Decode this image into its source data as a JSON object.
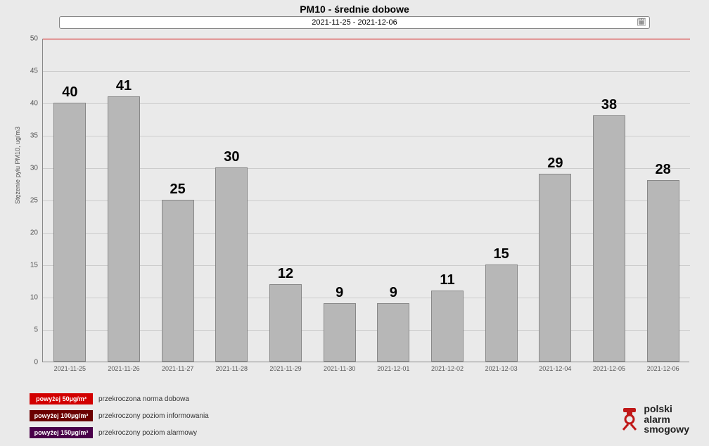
{
  "title": "PM10 - średnie dobowe",
  "date_picker": {
    "text": "2021-11-25  -  2021-12-06"
  },
  "chart": {
    "type": "bar",
    "yaxis_label": "Stężenie pyłu PM10, ug/m3",
    "ylim": [
      0,
      50
    ],
    "ytick_step": 5,
    "yticks": [
      0,
      5,
      10,
      15,
      20,
      25,
      30,
      35,
      40,
      45,
      50
    ],
    "threshold_value": 50,
    "threshold_color": "#d00000",
    "bar_color": "#b7b7b7",
    "bar_border_color": "#888888",
    "grid_color": "#cccccc",
    "background_color": "#eaeaea",
    "bar_width_ratio": 0.6,
    "value_label_fontsize": 20,
    "tick_label_fontsize": 9,
    "categories": [
      "2021-11-25",
      "2021-11-26",
      "2021-11-27",
      "2021-11-28",
      "2021-11-29",
      "2021-11-30",
      "2021-12-01",
      "2021-12-02",
      "2021-12-03",
      "2021-12-04",
      "2021-12-05",
      "2021-12-06"
    ],
    "values": [
      40,
      41,
      25,
      30,
      12,
      9,
      9,
      11,
      15,
      29,
      38,
      28
    ]
  },
  "legend": {
    "rows": [
      {
        "badge": "powyżej 50µg/m³",
        "badge_color": "#d20000",
        "text": "przekroczona norma dobowa"
      },
      {
        "badge": "powyżej 100µg/m³",
        "badge_color": "#6b0000",
        "text": "przekroczony poziom informowania"
      },
      {
        "badge": "powyżej 150µg/m³",
        "badge_color": "#4a004a",
        "text": "przekroczony poziom alarmowy"
      }
    ]
  },
  "logo": {
    "line1": "polski",
    "line2": "alarm",
    "line3": "smogowy",
    "mark_color": "#c01818"
  }
}
